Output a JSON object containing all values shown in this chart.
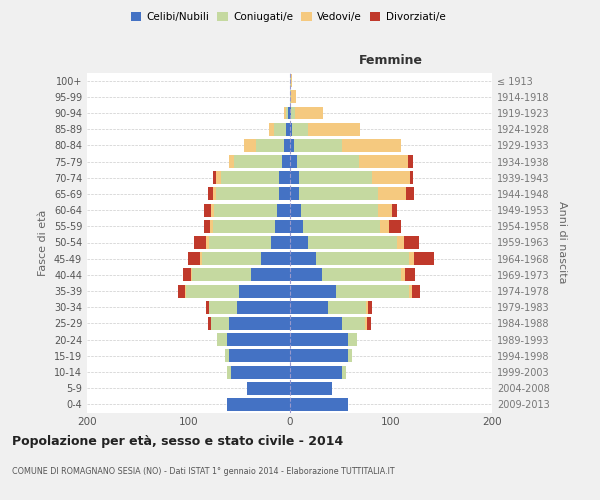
{
  "age_groups": [
    "100+",
    "95-99",
    "90-94",
    "85-89",
    "80-84",
    "75-79",
    "70-74",
    "65-69",
    "60-64",
    "55-59",
    "50-54",
    "45-49",
    "40-44",
    "35-39",
    "30-34",
    "25-29",
    "20-24",
    "15-19",
    "10-14",
    "5-9",
    "0-4"
  ],
  "birth_years": [
    "≤ 1913",
    "1914-1918",
    "1919-1923",
    "1924-1928",
    "1929-1933",
    "1934-1938",
    "1939-1943",
    "1944-1948",
    "1949-1953",
    "1954-1958",
    "1959-1963",
    "1964-1968",
    "1969-1973",
    "1974-1978",
    "1979-1983",
    "1984-1988",
    "1989-1993",
    "1994-1998",
    "1999-2003",
    "2004-2008",
    "2009-2013"
  ],
  "males": {
    "celibe": [
      0,
      0,
      1,
      3,
      5,
      7,
      10,
      10,
      12,
      14,
      18,
      28,
      38,
      50,
      52,
      60,
      62,
      60,
      58,
      42,
      62
    ],
    "coniugato": [
      0,
      0,
      2,
      12,
      28,
      48,
      58,
      63,
      63,
      62,
      62,
      58,
      58,
      52,
      28,
      18,
      10,
      4,
      4,
      0,
      0
    ],
    "vedovo": [
      0,
      0,
      2,
      5,
      12,
      5,
      5,
      3,
      3,
      3,
      2,
      2,
      1,
      1,
      0,
      0,
      0,
      0,
      0,
      0,
      0
    ],
    "divorziato": [
      0,
      0,
      0,
      0,
      0,
      0,
      3,
      4,
      6,
      5,
      12,
      12,
      8,
      7,
      2,
      2,
      0,
      0,
      0,
      0,
      0
    ]
  },
  "females": {
    "nubile": [
      0,
      0,
      1,
      2,
      4,
      7,
      9,
      9,
      11,
      13,
      18,
      26,
      32,
      46,
      38,
      52,
      58,
      58,
      52,
      42,
      58
    ],
    "coniugata": [
      1,
      1,
      4,
      16,
      48,
      62,
      72,
      78,
      76,
      76,
      88,
      92,
      78,
      72,
      38,
      23,
      9,
      4,
      4,
      0,
      0
    ],
    "vedova": [
      1,
      5,
      28,
      52,
      58,
      48,
      38,
      28,
      14,
      9,
      7,
      5,
      4,
      3,
      2,
      2,
      0,
      0,
      0,
      0,
      0
    ],
    "divorziata": [
      0,
      0,
      0,
      0,
      0,
      5,
      3,
      8,
      5,
      12,
      15,
      20,
      10,
      8,
      3,
      3,
      0,
      0,
      0,
      0,
      0
    ]
  },
  "colors": {
    "celibe": "#4472C4",
    "coniugato": "#c5d9a0",
    "vedovo": "#f5c97f",
    "divorziato": "#c0392b"
  },
  "title": "Popolazione per età, sesso e stato civile - 2014",
  "subtitle": "COMUNE DI ROMAGNANO SESIA (NO) - Dati ISTAT 1° gennaio 2014 - Elaborazione TUTTITALIA.IT",
  "ylabel_left": "Fasce di età",
  "ylabel_right": "Anni di nascita",
  "xlabel_right": "Femmine",
  "xlim": 200,
  "bg_color": "#f0f0f0",
  "plot_bg": "#ffffff",
  "grid_color": "#cccccc"
}
